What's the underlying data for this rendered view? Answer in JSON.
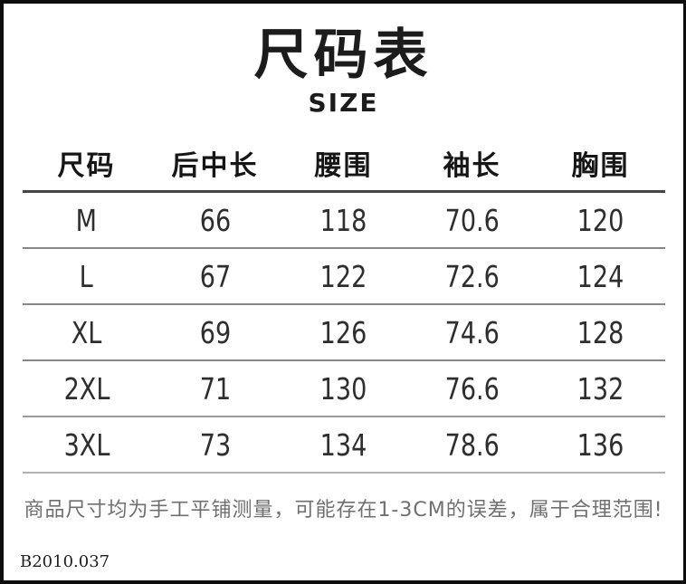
{
  "page": {
    "title": "尺码表",
    "subtitle": "SIZE",
    "note": "商品尺寸均为手工平铺测量，可能存在1-3CM的误差，属于合理范围!",
    "product_code": "B2010.037"
  },
  "chart_data": {
    "type": "table",
    "title": "尺码表 (SIZE)",
    "columns": [
      "尺码",
      "后中长",
      "腰围",
      "袖长",
      "胸围"
    ],
    "rows": [
      [
        "M",
        "66",
        "118",
        "70.6",
        "120"
      ],
      [
        "L",
        "67",
        "122",
        "72.6",
        "124"
      ],
      [
        "XL",
        "69",
        "126",
        "74.6",
        "128"
      ],
      [
        "2XL",
        "71",
        "130",
        "76.6",
        "132"
      ],
      [
        "3XL",
        "73",
        "134",
        "78.6",
        "136"
      ]
    ]
  },
  "colors": {
    "frame_border": "#0d0d0d",
    "text_primary": "#1c1c1c",
    "header_rule": "#454545",
    "row_rule": "#878787",
    "note_text": "#6f6f6f",
    "background": "#ffffff"
  }
}
